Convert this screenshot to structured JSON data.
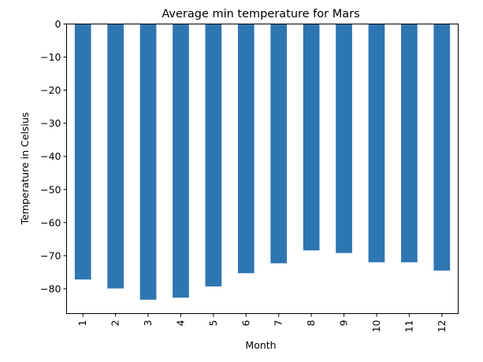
{
  "chart_data": {
    "type": "bar",
    "title": "Average min temperature for Mars",
    "xlabel": "Month",
    "ylabel": "Temperature in Celsius",
    "categories": [
      "1",
      "2",
      "3",
      "4",
      "5",
      "6",
      "7",
      "8",
      "9",
      "10",
      "11",
      "12"
    ],
    "values": [
      -77.2,
      -79.9,
      -83.3,
      -82.7,
      -79.3,
      -75.3,
      -72.3,
      -68.4,
      -69.2,
      -72.0,
      -72.0,
      -74.5
    ],
    "ylim": [
      -87.5,
      0
    ],
    "yticks": [
      0,
      -10,
      -20,
      -30,
      -40,
      -50,
      -60,
      -70,
      -80
    ],
    "ytick_labels": [
      "0",
      "−10",
      "−20",
      "−30",
      "−40",
      "−50",
      "−60",
      "−70",
      "−80"
    ],
    "bar_color": "#2e76b2",
    "grid": false,
    "legend": "none"
  }
}
